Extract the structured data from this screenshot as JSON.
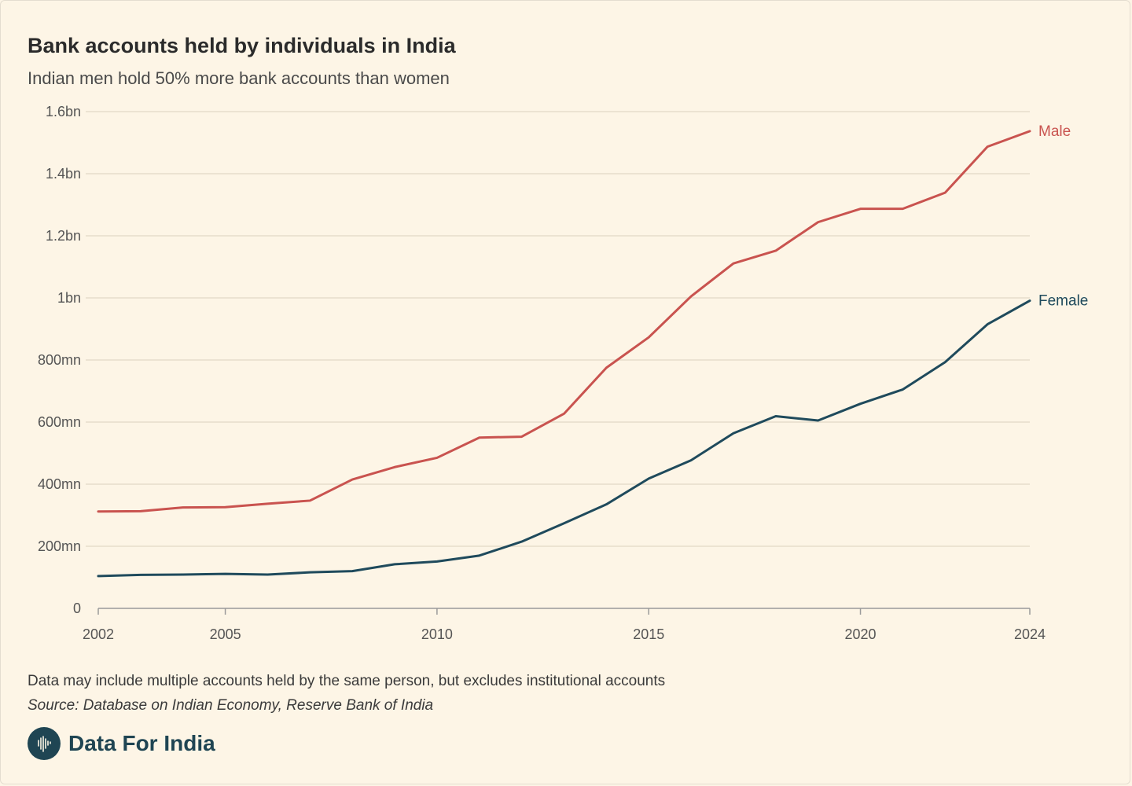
{
  "header": {
    "title": "Bank accounts held by individuals in India",
    "subtitle": "Indian men hold 50% more bank accounts than women"
  },
  "footer": {
    "note": "Data may include multiple accounts held by the same person, but excludes institutional accounts",
    "source": "Source: Database on Indian Economy, Reserve Bank of India",
    "brand": "Data For India"
  },
  "colors": {
    "male": "#c9534f",
    "female": "#1f4a5c",
    "grid": "#e6ddcb",
    "axis_text": "#555555"
  },
  "chart_data": {
    "type": "line",
    "title": "Bank accounts held by individuals in India",
    "subtitle": "Indian men hold 50% more bank accounts than women",
    "xlabel": "",
    "ylabel": "",
    "x": [
      2002,
      2003,
      2004,
      2005,
      2006,
      2007,
      2008,
      2009,
      2010,
      2011,
      2012,
      2013,
      2014,
      2015,
      2016,
      2017,
      2018,
      2019,
      2020,
      2021,
      2022,
      2023,
      2024
    ],
    "xlim": [
      2002,
      2024
    ],
    "ylim": [
      0,
      1600
    ],
    "y_unit": "million accounts",
    "x_ticks": [
      {
        "value": 2002,
        "label": "2002"
      },
      {
        "value": 2005,
        "label": "2005"
      },
      {
        "value": 2010,
        "label": "2010"
      },
      {
        "value": 2015,
        "label": "2015"
      },
      {
        "value": 2020,
        "label": "2020"
      },
      {
        "value": 2024,
        "label": "2024"
      }
    ],
    "y_ticks": [
      {
        "value": 0,
        "label": "0"
      },
      {
        "value": 200,
        "label": "200mn"
      },
      {
        "value": 400,
        "label": "400mn"
      },
      {
        "value": 600,
        "label": "600mn"
      },
      {
        "value": 800,
        "label": "800mn"
      },
      {
        "value": 1000,
        "label": "1bn"
      },
      {
        "value": 1200,
        "label": "1.2bn"
      },
      {
        "value": 1400,
        "label": "1.4bn"
      },
      {
        "value": 1600,
        "label": "1.6bn"
      }
    ],
    "grid": true,
    "legend": "direct labels at line ends",
    "series": [
      {
        "name": "Male",
        "color": "#c9534f",
        "values": [
          312,
          313,
          325,
          326,
          337,
          347,
          415,
          455,
          485,
          550,
          553,
          627,
          775,
          873,
          1005,
          1111,
          1152,
          1244,
          1287,
          1287,
          1339,
          1487,
          1537
        ]
      },
      {
        "name": "Female",
        "color": "#1f4a5c",
        "values": [
          104,
          108,
          109,
          111,
          109,
          116,
          120,
          142,
          151,
          170,
          215,
          274,
          335,
          418,
          477,
          564,
          619,
          605,
          659,
          705,
          793,
          915,
          991
        ]
      }
    ]
  }
}
